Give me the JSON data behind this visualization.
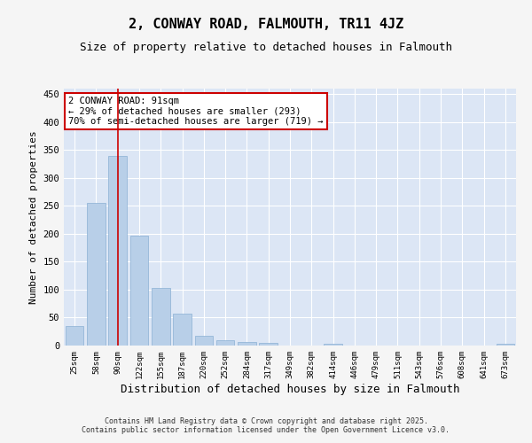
{
  "title": "2, CONWAY ROAD, FALMOUTH, TR11 4JZ",
  "subtitle": "Size of property relative to detached houses in Falmouth",
  "xlabel": "Distribution of detached houses by size in Falmouth",
  "ylabel": "Number of detached properties",
  "categories": [
    "25sqm",
    "58sqm",
    "90sqm",
    "122sqm",
    "155sqm",
    "187sqm",
    "220sqm",
    "252sqm",
    "284sqm",
    "317sqm",
    "349sqm",
    "382sqm",
    "414sqm",
    "446sqm",
    "479sqm",
    "511sqm",
    "543sqm",
    "576sqm",
    "608sqm",
    "641sqm",
    "673sqm"
  ],
  "values": [
    35,
    255,
    340,
    197,
    103,
    57,
    18,
    10,
    7,
    4,
    0,
    0,
    3,
    0,
    0,
    0,
    0,
    0,
    0,
    0,
    3
  ],
  "bar_color": "#b8cfe8",
  "bar_edge_color": "#8ab0d4",
  "vline_x": 2,
  "vline_color": "#cc0000",
  "annotation_text": "2 CONWAY ROAD: 91sqm\n← 29% of detached houses are smaller (293)\n70% of semi-detached houses are larger (719) →",
  "annotation_box_color": "#cc0000",
  "annotation_text_color": "#000000",
  "ylim": [
    0,
    460
  ],
  "yticks": [
    0,
    50,
    100,
    150,
    200,
    250,
    300,
    350,
    400,
    450
  ],
  "bg_color": "#dce6f5",
  "grid_color": "#ffffff",
  "fig_bg_color": "#f5f5f5",
  "footer_text": "Contains HM Land Registry data © Crown copyright and database right 2025.\nContains public sector information licensed under the Open Government Licence v3.0.",
  "title_fontsize": 11,
  "subtitle_fontsize": 9,
  "xlabel_fontsize": 9,
  "ylabel_fontsize": 8,
  "annot_fontsize": 7.5
}
